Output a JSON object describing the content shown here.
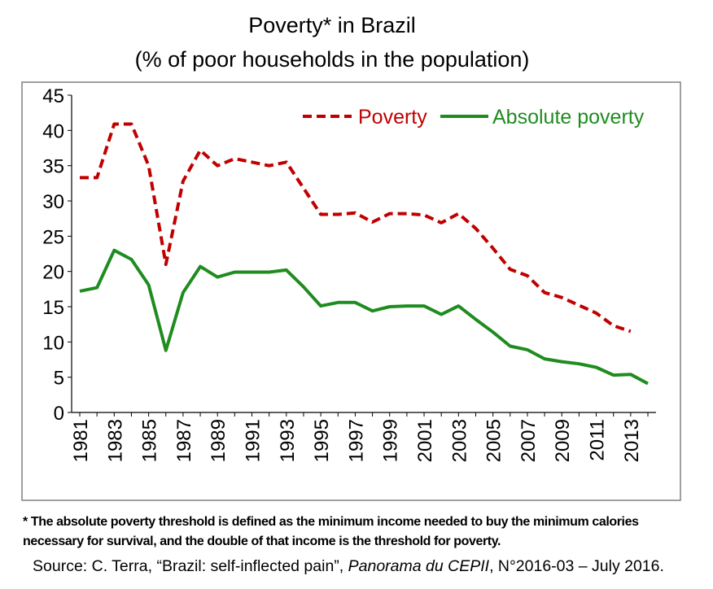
{
  "colors": {
    "poverty": "#c00000",
    "absolute_poverty": "#1f8c1f",
    "border": "#808080",
    "grid": "#bfbfbf"
  },
  "chart_data": {
    "type": "line",
    "title": "Poverty* in Brazil",
    "subtitle": "(% of poor households in the population)",
    "x": [
      1981,
      1982,
      1983,
      1984,
      1985,
      1986,
      1987,
      1988,
      1989,
      1990,
      1991,
      1992,
      1993,
      1994,
      1995,
      1996,
      1997,
      1998,
      1999,
      2000,
      2001,
      2002,
      2003,
      2004,
      2005,
      2006,
      2007,
      2008,
      2009,
      2010,
      2011,
      2012,
      2013,
      2014
    ],
    "x_tick_labels": [
      "1981",
      "1983",
      "1985",
      "1987",
      "1989",
      "1991",
      "1993",
      "1995",
      "1997",
      "1999",
      "2001",
      "2003",
      "2005",
      "2007",
      "2009",
      "2011",
      "2013"
    ],
    "y_tick_labels": [
      "0",
      "5",
      "10",
      "15",
      "20",
      "25",
      "30",
      "35",
      "40",
      "45"
    ],
    "ylim": [
      0,
      45
    ],
    "legend_position": "top-right",
    "series": [
      {
        "name": "Poverty",
        "style": "dashed",
        "values": [
          33.3,
          33.3,
          40.9,
          40.9,
          35.0,
          21.0,
          32.8,
          37.2,
          35.0,
          36.0,
          35.5,
          35.0,
          35.5,
          31.8,
          28.1,
          28.1,
          28.3,
          27.0,
          28.2,
          28.2,
          28.0,
          26.9,
          28.2,
          26.1,
          23.3,
          20.3,
          19.4,
          17.0,
          16.3,
          15.2,
          14.1,
          12.3,
          11.5,
          null
        ]
      },
      {
        "name": "Absolute poverty",
        "style": "solid",
        "values": [
          17.2,
          17.7,
          23.0,
          21.7,
          18.1,
          8.8,
          17.0,
          20.7,
          19.2,
          19.9,
          19.9,
          19.9,
          20.2,
          17.8,
          15.1,
          15.6,
          15.6,
          14.4,
          15.0,
          15.1,
          15.1,
          13.9,
          15.1,
          13.2,
          11.4,
          9.4,
          8.9,
          7.6,
          7.2,
          6.9,
          6.4,
          5.3,
          5.4,
          4.1
        ]
      }
    ]
  },
  "footnote": {
    "line1": "* The absolute poverty threshold is defined as the minimum income needed to buy the minimum calories",
    "line2": "necessary for survival, and the double of that income is the threshold for poverty."
  },
  "source": {
    "prefix": "Source: C. Terra, “Brazil: self-inflected pain”, ",
    "publication": "Panorama du CEPII",
    "suffix": ", N°2016-03 – July 2016."
  }
}
